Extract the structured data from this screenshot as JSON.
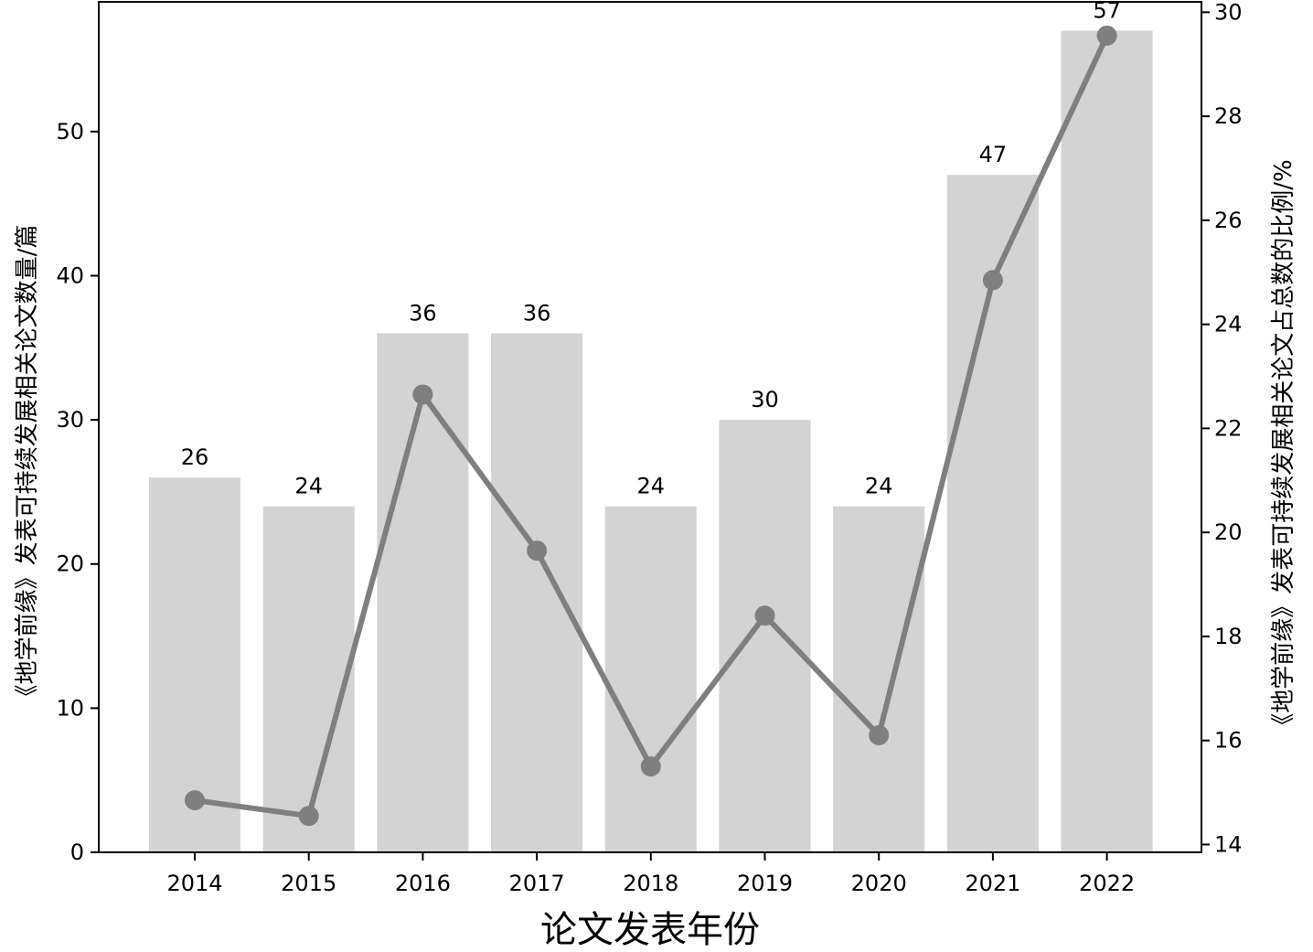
{
  "chart_data": {
    "type": "bar+line",
    "categories": [
      "2014",
      "2015",
      "2016",
      "2017",
      "2018",
      "2019",
      "2020",
      "2021",
      "2022"
    ],
    "bars": {
      "values": [
        26,
        24,
        36,
        36,
        24,
        30,
        24,
        47,
        57
      ],
      "data_labels": [
        "26",
        "24",
        "36",
        "36",
        "24",
        "30",
        "24",
        "47",
        "57"
      ],
      "color": "#d3d3d3",
      "axis": "left"
    },
    "line": {
      "values": [
        14.85,
        14.55,
        22.65,
        19.65,
        15.5,
        18.4,
        16.1,
        24.85,
        29.55
      ],
      "color": "#7f7f7f",
      "axis": "right"
    },
    "xlabel": "论文发表年份",
    "ylabel": "《地学前缘》发表可持续发展相关论文数量/篇",
    "y2label": "《地学前缘》发表可持续发展相关论文占总数的比例/%",
    "ylim": [
      0,
      59
    ],
    "y2lim": [
      13.85,
      30.2
    ],
    "yticks": [
      "0",
      "10",
      "20",
      "30",
      "40",
      "50"
    ],
    "y2ticks": [
      "14",
      "16",
      "18",
      "20",
      "22",
      "24",
      "26",
      "28",
      "30"
    ],
    "grid": false,
    "legend": "none"
  }
}
